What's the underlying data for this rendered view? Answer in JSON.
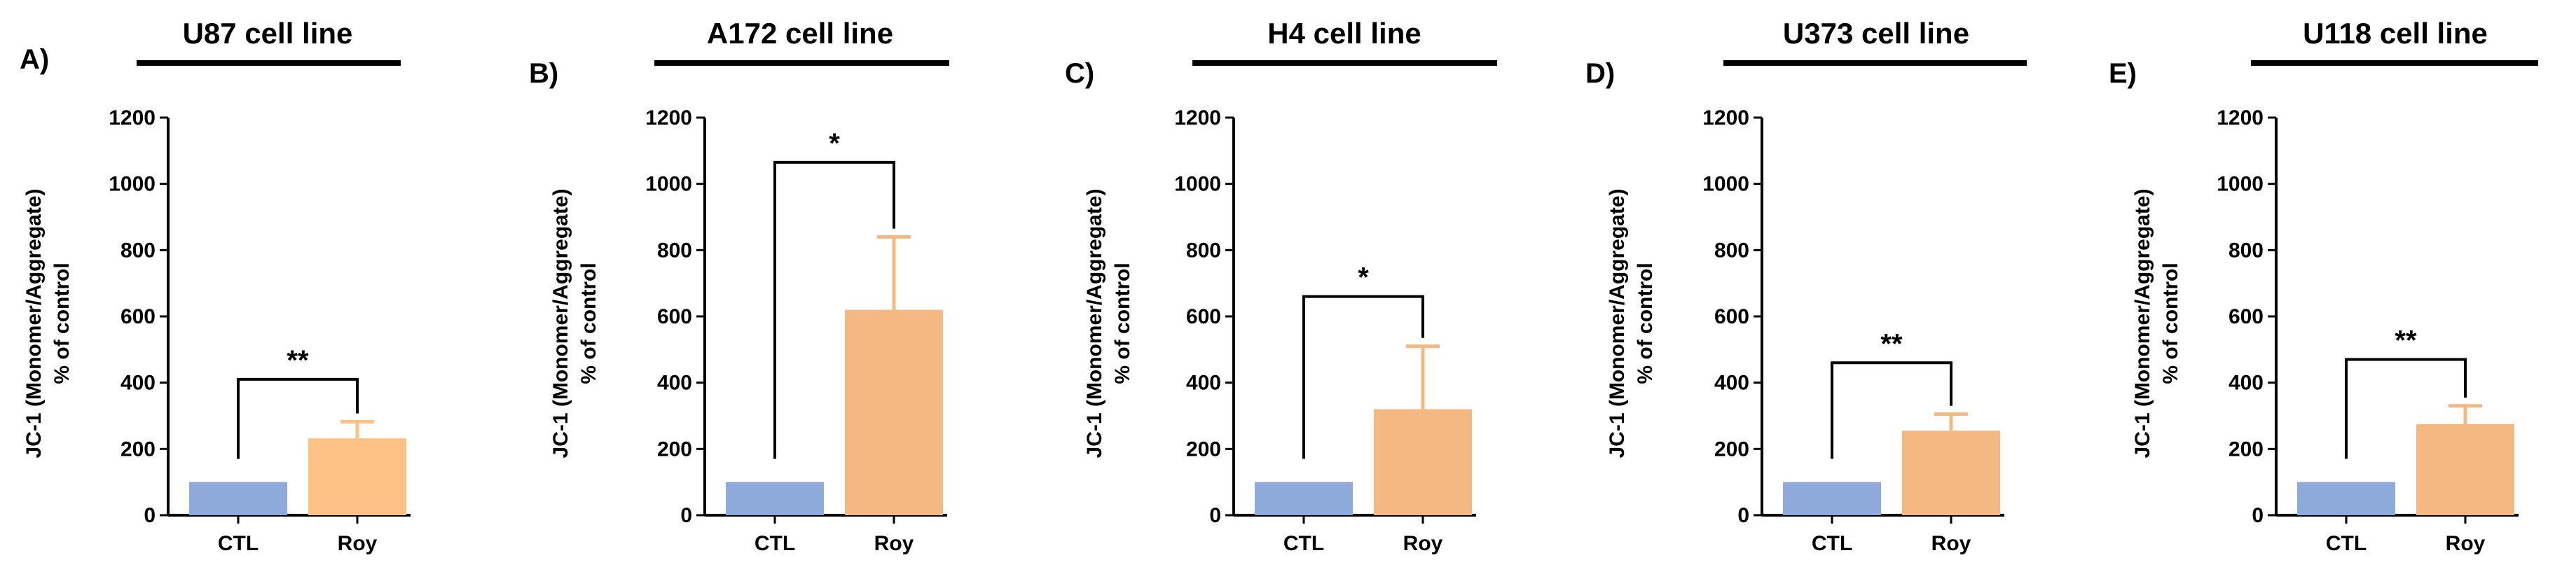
{
  "chart_data": [
    {
      "panel_label": "A)",
      "title": "U87 cell line",
      "type": "bar",
      "categories": [
        "CTL",
        "Roy"
      ],
      "values": [
        100,
        232
      ],
      "error_upper": [
        0,
        50
      ],
      "colors": [
        "#8eaadb",
        "#ffc285"
      ],
      "ylabel_line1": "JC-1 (Monomer/Aggregate)",
      "ylabel_line2": "% of control",
      "ylim": [
        0,
        1200
      ],
      "yticks": [
        "0",
        "200",
        "400",
        "600",
        "800",
        "1000",
        "1200"
      ],
      "significance": "**",
      "bracket_value": 410
    },
    {
      "panel_label": "B)",
      "title": "A172 cell line",
      "type": "bar",
      "categories": [
        "CTL",
        "Roy"
      ],
      "values": [
        100,
        620
      ],
      "error_upper": [
        0,
        220
      ],
      "colors": [
        "#8eaadb",
        "#f4b883"
      ],
      "ylabel_line1": "JC-1 (Monomer/Aggregate)",
      "ylabel_line2": "% of control",
      "ylim": [
        0,
        1200
      ],
      "yticks": [
        "0",
        "200",
        "400",
        "600",
        "800",
        "1000",
        "1200"
      ],
      "significance": "*",
      "bracket_value": 1065
    },
    {
      "panel_label": "C)",
      "title": "H4 cell line",
      "type": "bar",
      "categories": [
        "CTL",
        "Roy"
      ],
      "values": [
        100,
        320
      ],
      "error_upper": [
        0,
        190
      ],
      "colors": [
        "#8eaadb",
        "#f4b883"
      ],
      "ylabel_line1": "JC-1 (Monomer/Aggregate)",
      "ylabel_line2": "% of control",
      "ylim": [
        0,
        1200
      ],
      "yticks": [
        "0",
        "200",
        "400",
        "600",
        "800",
        "1000",
        "1200"
      ],
      "significance": "*",
      "bracket_value": 660
    },
    {
      "panel_label": "D)",
      "title": "U373 cell line",
      "type": "bar",
      "categories": [
        "CTL",
        "Roy"
      ],
      "values": [
        100,
        255
      ],
      "error_upper": [
        0,
        50
      ],
      "colors": [
        "#8eaadb",
        "#f4b883"
      ],
      "ylabel_line1": "JC-1 (Monomer/Aggregate)",
      "ylabel_line2": "% of control",
      "ylim": [
        0,
        1200
      ],
      "yticks": [
        "0",
        "200",
        "400",
        "600",
        "800",
        "1000",
        "1200"
      ],
      "significance": "**",
      "bracket_value": 460
    },
    {
      "panel_label": "E)",
      "title": "U118 cell line",
      "type": "bar",
      "categories": [
        "CTL",
        "Roy"
      ],
      "values": [
        100,
        275
      ],
      "error_upper": [
        0,
        55
      ],
      "colors": [
        "#8eaadb",
        "#f4b883"
      ],
      "ylabel_line1": "JC-1 (Monomer/Aggregate)",
      "ylabel_line2": "% of control",
      "ylim": [
        0,
        1200
      ],
      "yticks": [
        "0",
        "200",
        "400",
        "600",
        "800",
        "1000",
        "1200"
      ],
      "significance": "**",
      "bracket_value": 470
    }
  ]
}
